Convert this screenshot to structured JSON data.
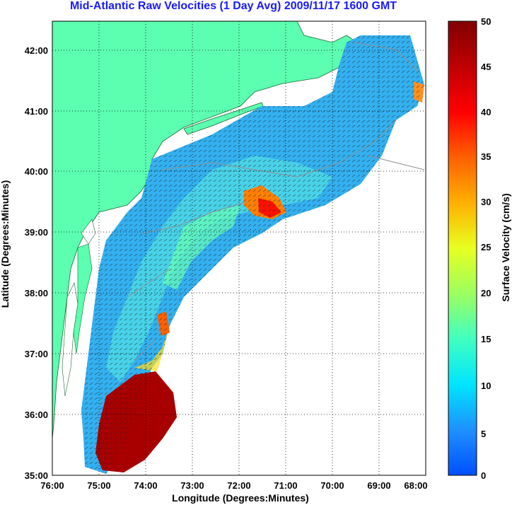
{
  "title": "Mid-Atlantic Raw Velocities (1 Day Avg) 2009/11/17 1600 GMT",
  "xlabel": "Longitude (Degrees:Minutes)",
  "ylabel": "Latitude (Degrees:Minutes)",
  "x_ticks": [
    "76:00",
    "75:00",
    "74:00",
    "73:00",
    "72:00",
    "71:00",
    "70:00",
    "69:00",
    "68:00"
  ],
  "y_ticks": [
    "35:00",
    "36:00",
    "37:00",
    "38:00",
    "39:00",
    "40:00",
    "41:00",
    "42:00"
  ],
  "colorbar": {
    "label": "Surface Velocity (cm/s)",
    "ticks": [
      "0",
      "5",
      "10",
      "15",
      "20",
      "25",
      "30",
      "35",
      "40",
      "45",
      "50"
    ],
    "range": [
      0,
      50
    ]
  },
  "colors": {
    "land": "#5cffb0",
    "ocean_base": "#33b0f0",
    "title": "#1a1aff"
  }
}
